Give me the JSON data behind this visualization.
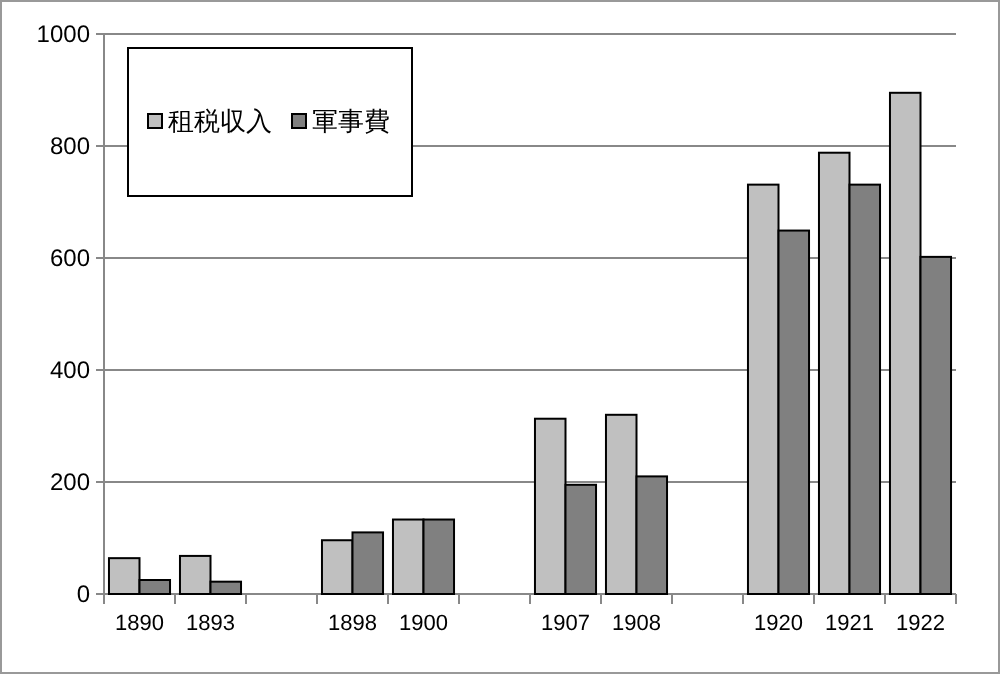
{
  "chart_data": {
    "type": "bar",
    "categories": [
      "1890",
      "1893",
      null,
      "1898",
      "1900",
      null,
      "1907",
      "1908",
      null,
      "1920",
      "1921",
      "1922"
    ],
    "series": [
      {
        "name": "租税収入",
        "color": "#c0c0c0",
        "values": [
          64,
          68,
          null,
          96,
          133,
          null,
          313,
          320,
          null,
          731,
          788,
          895
        ]
      },
      {
        "name": "軍事費",
        "color": "#808080",
        "values": [
          25,
          22,
          null,
          110,
          133,
          null,
          195,
          210,
          null,
          649,
          731,
          602
        ]
      }
    ],
    "ylim": [
      0,
      1000
    ],
    "yticks": [
      0,
      200,
      400,
      600,
      800,
      1000
    ],
    "grid": "y",
    "legend": "top left"
  }
}
